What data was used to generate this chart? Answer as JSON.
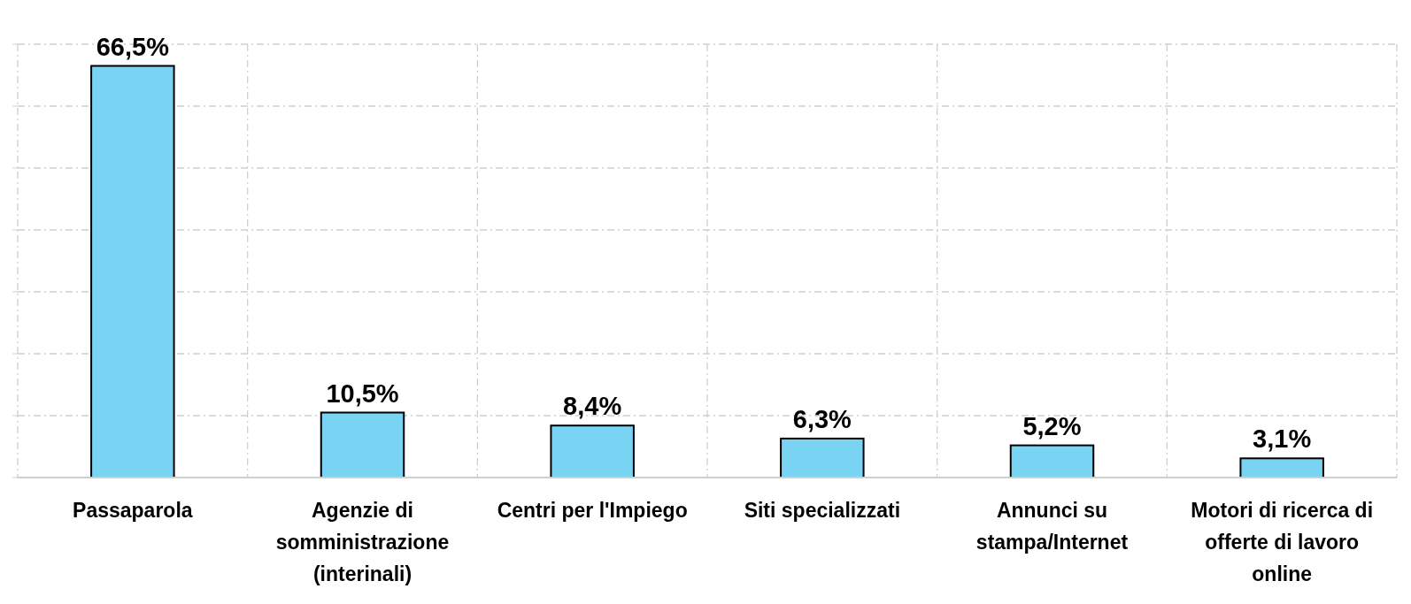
{
  "chart_data": {
    "type": "bar",
    "categories": [
      "Passaparola",
      "Agenzie di somministrazione (interinali)",
      "Centri per l'Impiego",
      "Siti specializzati",
      "Annunci su stampa/Internet",
      "Motori di ricerca di offerte di lavoro online"
    ],
    "values": [
      66.5,
      10.5,
      8.4,
      6.3,
      5.2,
      3.1
    ],
    "value_labels": [
      "66,5%",
      "10,5%",
      "8,4%",
      "6,3%",
      "5,2%",
      "3,1%"
    ],
    "color": "#79d3f3",
    "ylim": [
      0,
      70
    ],
    "yticks": [
      {
        "value": 0,
        "label": null
      },
      {
        "value": 10,
        "label": null
      },
      {
        "value": 20,
        "label": null
      },
      {
        "value": 30,
        "label": null
      },
      {
        "value": 40,
        "label": null
      },
      {
        "value": 50,
        "label": null
      },
      {
        "value": 60,
        "label": null
      },
      {
        "value": 70,
        "label": null
      }
    ],
    "grid": true,
    "tick_labels": "x"
  }
}
